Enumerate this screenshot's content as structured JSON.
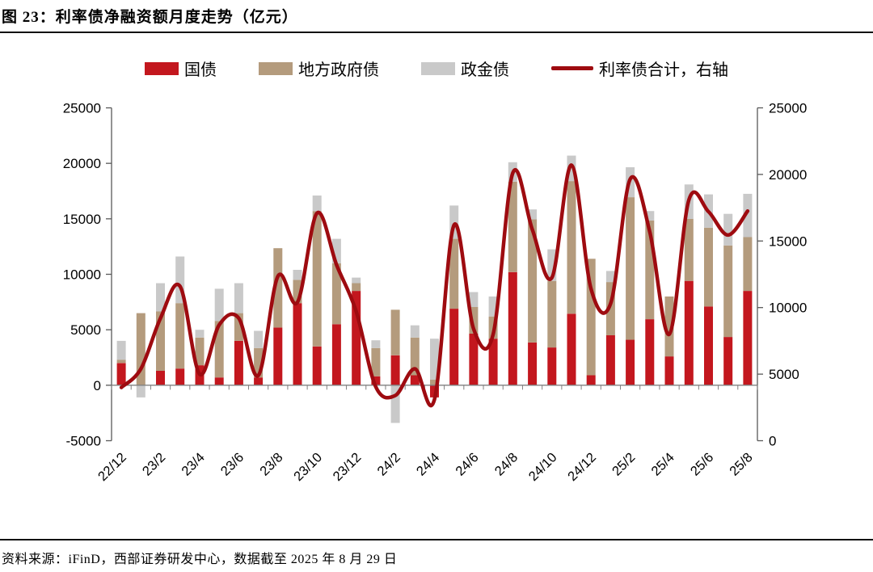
{
  "title": "图 23：利率债净融资额月度走势（亿元）",
  "source_note": "资料来源：iFinD，西部证券研发中心，数据截至 2025 年 8 月 29 日",
  "legend": {
    "treasury": "国债",
    "local_gov": "地方政府债",
    "policy_bank": "政金债",
    "total_line": "利率债合计，右轴"
  },
  "colors": {
    "treasury": "#C3171E",
    "local_gov": "#B49B7D",
    "policy_bank": "#C9C9C9",
    "total_line": "#9E0B10",
    "axis_line": "#595959",
    "x_tick": "#808080",
    "text": "#000000"
  },
  "chart_data": {
    "type": "bar",
    "subtype": "stacked-bars-with-smooth-line",
    "unit": "亿元",
    "title": "利率债净融资额月度走势（亿元）",
    "categories": [
      "22/12",
      "23/1",
      "23/2",
      "23/3",
      "23/4",
      "23/5",
      "23/6",
      "23/7",
      "23/8",
      "23/9",
      "23/10",
      "23/11",
      "23/12",
      "24/1",
      "24/2",
      "24/3",
      "24/4",
      "24/5",
      "24/6",
      "24/7",
      "24/8",
      "24/9",
      "24/10",
      "24/11",
      "24/12",
      "25/1",
      "25/2",
      "25/3",
      "25/4",
      "25/5",
      "25/6",
      "25/7",
      "25/8"
    ],
    "x_tick_labels_shown": [
      "22/12",
      "23/2",
      "23/4",
      "23/6",
      "23/8",
      "23/10",
      "23/12",
      "24/2",
      "24/4",
      "24/6",
      "24/8",
      "24/10",
      "24/12",
      "25/2",
      "25/4",
      "25/6",
      "25/8"
    ],
    "series": [
      {
        "name": "国债",
        "type": "bar",
        "axis": "left",
        "color": "#C3171E",
        "values": [
          2000,
          0,
          1300,
          1500,
          1800,
          700,
          4000,
          700,
          5200,
          7400,
          3500,
          5500,
          8500,
          800,
          2700,
          900,
          -1100,
          6900,
          4650,
          4200,
          10200,
          3850,
          3400,
          6450,
          900,
          4500,
          4100,
          5950,
          2600,
          9400,
          7100,
          4350,
          8500
        ]
      },
      {
        "name": "地方政府债",
        "type": "bar",
        "axis": "left",
        "color": "#B49B7D",
        "values": [
          300,
          6500,
          5350,
          5900,
          2500,
          5100,
          2500,
          2650,
          7150,
          2100,
          12200,
          5500,
          700,
          2550,
          4100,
          3400,
          500,
          6300,
          2400,
          2000,
          8150,
          11100,
          6000,
          11950,
          10500,
          4800,
          12850,
          8900,
          5400,
          5600,
          7100,
          8250,
          4850
        ]
      },
      {
        "name": "政金债",
        "type": "bar",
        "axis": "left",
        "color": "#C9C9C9",
        "values": [
          1700,
          -1100,
          2550,
          4200,
          700,
          2900,
          2700,
          1550,
          0,
          900,
          1400,
          2200,
          500,
          700,
          -3400,
          1100,
          3700,
          3000,
          1350,
          1800,
          1750,
          900,
          2850,
          2300,
          0,
          1000,
          2700,
          850,
          0,
          3100,
          3000,
          2850,
          3900
        ]
      },
      {
        "name": "利率债合计，右轴",
        "type": "line",
        "axis": "right",
        "color": "#9E0B10",
        "values": [
          4000,
          5400,
          9200,
          11600,
          5000,
          8700,
          9200,
          4900,
          12350,
          10400,
          17100,
          13200,
          9700,
          4050,
          3400,
          5400,
          3100,
          16200,
          8400,
          8000,
          20100,
          15850,
          12250,
          20700,
          11400,
          10300,
          19650,
          15700,
          8000,
          18100,
          17200,
          15450,
          17250
        ]
      }
    ],
    "left_axis": {
      "min": -5000,
      "max": 25000,
      "step": 5000,
      "ticks": [
        -5000,
        0,
        5000,
        10000,
        15000,
        20000,
        25000
      ]
    },
    "right_axis": {
      "min": 0,
      "max": 25000,
      "step": 5000,
      "ticks": [
        0,
        5000,
        10000,
        15000,
        20000,
        25000
      ]
    },
    "grid": false,
    "legend_position": "top"
  }
}
